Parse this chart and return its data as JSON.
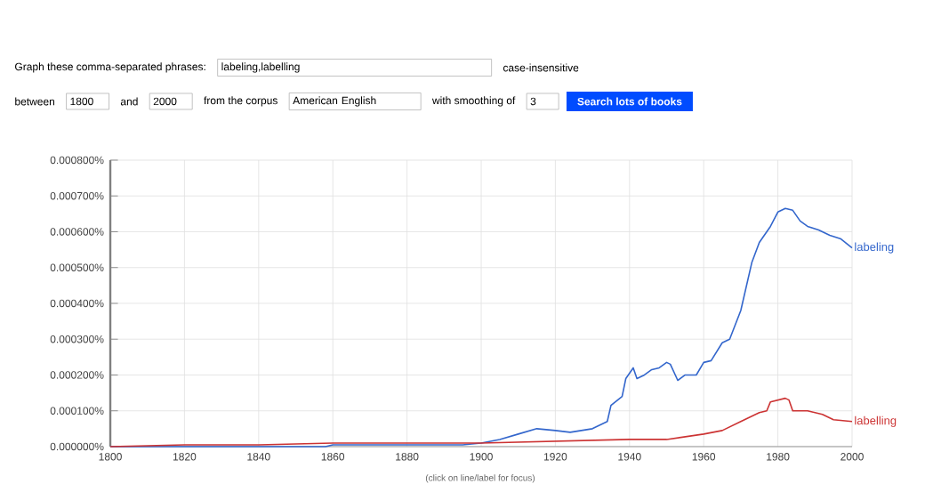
{
  "chart_data": {
    "type": "line",
    "annotations": [
      "Graph these comma-separated phrases:",
      "labeling,labelling",
      "case-insensitive",
      "between",
      "1800",
      "and",
      "2000",
      "from the corpus",
      "American English",
      "with smoothing of",
      "3",
      "Search lots of books",
      "(click on line/label for focus)"
    ],
    "series": [
      {
        "name": "labeling",
        "color": "#3366cc",
        "x": [
          1800,
          1840,
          1858,
          1860,
          1880,
          1895,
          1900,
          1905,
          1910,
          1915,
          1920,
          1924,
          1930,
          1934,
          1935,
          1938,
          1939,
          1941,
          1942,
          1944,
          1946,
          1948,
          1950,
          1951,
          1953,
          1955,
          1958,
          1960,
          1962,
          1965,
          1967,
          1970,
          1973,
          1975,
          1978,
          1980,
          1982,
          1984,
          1986,
          1988,
          1991,
          1994,
          1997,
          2000
        ],
        "values": [
          0,
          0,
          0,
          5e-06,
          5e-06,
          5e-06,
          1e-05,
          2e-05,
          3.5e-05,
          5e-05,
          4.5e-05,
          4e-05,
          5e-05,
          7e-05,
          0.000115,
          0.00014,
          0.00019,
          0.00022,
          0.00019,
          0.0002,
          0.000215,
          0.00022,
          0.000235,
          0.00023,
          0.000185,
          0.0002,
          0.0002,
          0.000235,
          0.00024,
          0.00029,
          0.0003,
          0.00038,
          0.000515,
          0.00057,
          0.000615,
          0.000655,
          0.000665,
          0.00066,
          0.00063,
          0.000615,
          0.000605,
          0.00059,
          0.00058,
          0.000555
        ]
      },
      {
        "name": "labelling",
        "color": "#cc3333",
        "x": [
          1800,
          1820,
          1840,
          1860,
          1880,
          1900,
          1920,
          1940,
          1950,
          1960,
          1965,
          1970,
          1975,
          1977,
          1978,
          1982,
          1983,
          1984,
          1988,
          1992,
          1995,
          2000
        ],
        "values": [
          0,
          5e-06,
          5e-06,
          1e-05,
          1e-05,
          1e-05,
          1.5e-05,
          2e-05,
          2e-05,
          3.5e-05,
          4.5e-05,
          7e-05,
          9.5e-05,
          0.0001,
          0.000125,
          0.000135,
          0.00013,
          0.0001,
          0.0001,
          9e-05,
          7.5e-05,
          7e-05
        ]
      }
    ],
    "xlim": [
      1800,
      2000
    ],
    "xticks": [
      1800,
      1820,
      1840,
      1860,
      1880,
      1900,
      1920,
      1940,
      1960,
      1980,
      2000
    ],
    "ylim": [
      0,
      0.0008
    ],
    "yticks": [
      {
        "value": 0,
        "label": "0.000000%"
      },
      {
        "value": 0.0001,
        "label": "0.000100%"
      },
      {
        "value": 0.0002,
        "label": "0.000200%"
      },
      {
        "value": 0.0003,
        "label": "0.000300%"
      },
      {
        "value": 0.0004,
        "label": "0.000400%"
      },
      {
        "value": 0.0005,
        "label": "0.000500%"
      },
      {
        "value": 0.0006,
        "label": "0.000600%"
      },
      {
        "value": 0.0007,
        "label": "0.000700%"
      },
      {
        "value": 0.0008,
        "label": "0.000800%"
      }
    ],
    "grid": true,
    "marker": "none",
    "line_style": "solid"
  }
}
